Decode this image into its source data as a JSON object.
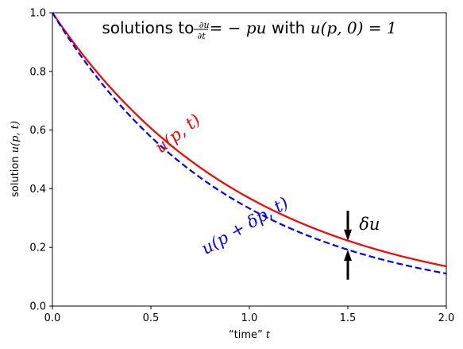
{
  "chart_data": {
    "type": "line",
    "title_prefix": "solutions to ",
    "title_fraction_numerator": "∂u",
    "title_fraction_denominator": "∂t",
    "title_equation": "= − pu",
    "title_with": " with ",
    "title_condition": "u(p, 0) = 1",
    "xlabel_prefix": "“time” ",
    "xlabel_var": "t",
    "ylabel_prefix": "solution ",
    "ylabel_var": "u(p, t)",
    "xlim": [
      0.0,
      2.0
    ],
    "ylim": [
      0.0,
      1.0
    ],
    "xticks": [
      0.0,
      0.5,
      1.0,
      1.5,
      2.0
    ],
    "yticks": [
      0.0,
      0.2,
      0.4,
      0.6,
      0.8,
      1.0
    ],
    "xtick_labels": [
      "0.0",
      "0.5",
      "1.0",
      "1.5",
      "2.0"
    ],
    "ytick_labels": [
      "0.0",
      "0.2",
      "0.4",
      "0.6",
      "0.8",
      "1.0"
    ],
    "grid": false,
    "series": [
      {
        "name": "u(p, t)",
        "color": "#ff0000",
        "style": "solid",
        "rate": 1.0,
        "x": [
          0.0,
          0.25,
          0.5,
          0.75,
          1.0,
          1.25,
          1.5,
          1.75,
          2.0
        ],
        "values": [
          1.0,
          0.779,
          0.607,
          0.472,
          0.368,
          0.287,
          0.223,
          0.174,
          0.135
        ]
      },
      {
        "name": "u(p + δp, t)",
        "color": "#0000ff",
        "style": "dashed",
        "rate": 1.1,
        "x": [
          0.0,
          0.25,
          0.5,
          0.75,
          1.0,
          1.25,
          1.5,
          1.75,
          2.0
        ],
        "values": [
          1.0,
          0.76,
          0.577,
          0.438,
          0.333,
          0.253,
          0.192,
          0.146,
          0.111
        ]
      }
    ],
    "annotations": [
      {
        "text": "u(p, t)",
        "color": "#ff0000",
        "x": 0.64,
        "y": 0.585,
        "rotation": -38
      },
      {
        "text": "u(p + δp, t)",
        "color": "#0000ff",
        "x": 0.98,
        "y": 0.27,
        "rotation": -30
      },
      {
        "text": "δu",
        "color": "#000000",
        "x": 1.61,
        "y": 0.275,
        "rotation": 0
      }
    ],
    "arrows": [
      {
        "name": "delta-u-arrow-down",
        "x": 1.5,
        "y_from": 0.325,
        "y_to": 0.223
      },
      {
        "name": "delta-u-arrow-up",
        "x": 1.5,
        "y_from": 0.09,
        "y_to": 0.192
      }
    ]
  }
}
